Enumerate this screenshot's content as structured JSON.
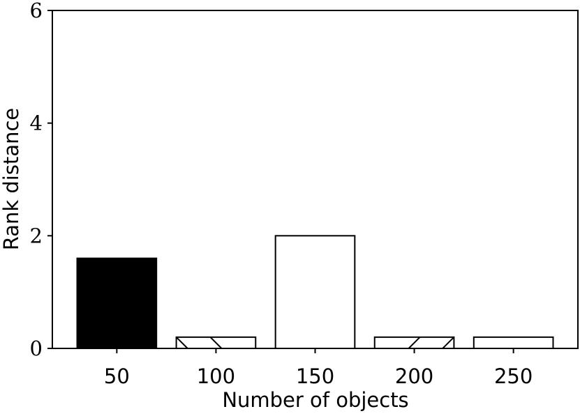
{
  "chart_data": {
    "type": "bar",
    "x": [
      50,
      100,
      150,
      200,
      250
    ],
    "values": [
      1.6,
      0.2,
      2.0,
      0.2,
      0.2
    ],
    "colors": [
      "#000000",
      "#ffffff",
      "#ffffff",
      "#ffffff",
      "#ffffff"
    ],
    "hatches": [
      null,
      "\\",
      null,
      "/",
      null
    ],
    "edgecolor": "#000000",
    "xlabel": "Number of objects",
    "ylabel": "Rank distance",
    "xlim": [
      17.5,
      282.5
    ],
    "xticks": [
      50,
      100,
      150,
      200,
      250
    ],
    "ylim": [
      0,
      6
    ],
    "yticks": [
      0,
      2,
      4,
      6
    ],
    "grid": false
  }
}
